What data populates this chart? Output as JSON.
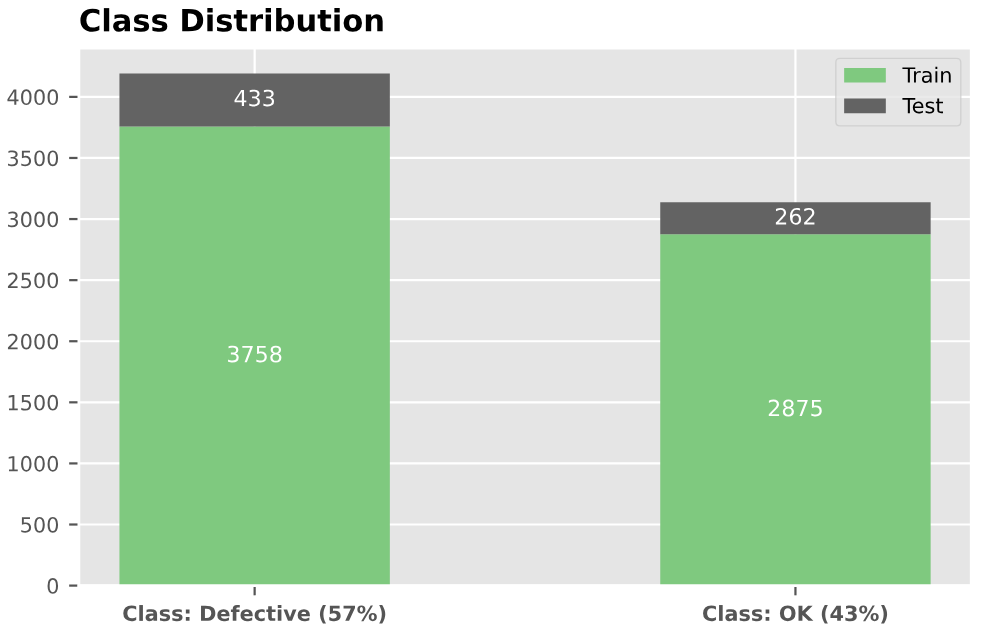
{
  "chart_data": {
    "type": "bar",
    "title": "Class Distribution",
    "categories": [
      "Class: Defective (57%)",
      "Class: OK (43%)"
    ],
    "series": [
      {
        "name": "Train",
        "color": "#7fc97f",
        "values": [
          3758,
          2875
        ]
      },
      {
        "name": "Test",
        "color": "#636363",
        "values": [
          433,
          262
        ]
      }
    ],
    "stacked": true,
    "data_labels": true,
    "ylim": [
      0,
      4400
    ],
    "yticks": [
      0,
      500,
      1000,
      1500,
      2000,
      2500,
      3000,
      3500,
      4000
    ],
    "grid": true,
    "legend": "top right"
  }
}
